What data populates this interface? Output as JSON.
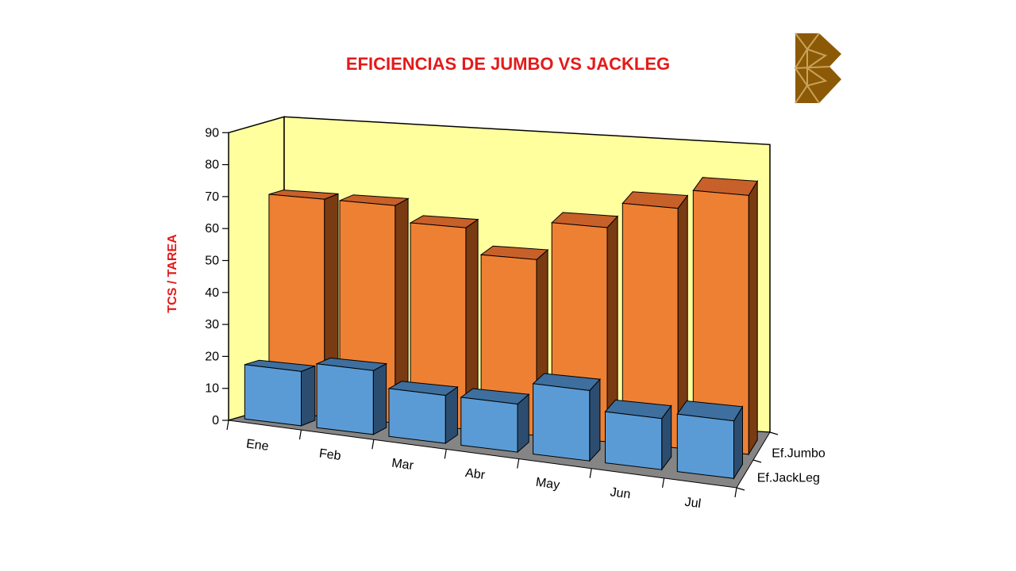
{
  "chart_data": {
    "type": "bar",
    "title": "EFICIENCIAS DE JUMBO VS JACKLEG",
    "ylabel": "TCS / TAREA",
    "xlabel": "",
    "ylim": [
      0,
      90
    ],
    "yticks": [
      0,
      10,
      20,
      30,
      40,
      50,
      60,
      70,
      80,
      90
    ],
    "categories": [
      "Ene",
      "Feb",
      "Mar",
      "Abr",
      "May",
      "Jun",
      "Jul"
    ],
    "series": [
      {
        "name": "Ef.Jumbo",
        "values": [
          68,
          68,
          63,
          55,
          67,
          75,
          81
        ]
      },
      {
        "name": "Ef.JackLeg",
        "values": [
          17,
          20,
          15,
          15,
          22,
          16,
          18
        ]
      }
    ],
    "legend": "right",
    "grid": false,
    "colors": {
      "title": "#e41a1a",
      "ylabel": "#e41a1a",
      "jumbo_front": "#ee8034",
      "jumbo_top": "#c8602a",
      "jumbo_side": "#7a3a12",
      "jack_front": "#5b9bd5",
      "jack_top": "#3e6f9e",
      "jack_side": "#2c4d70",
      "back_wall": "#ffff9e",
      "side_wall": "#ffff9e",
      "floor": "#858585",
      "logo": "#8c5a06"
    }
  }
}
